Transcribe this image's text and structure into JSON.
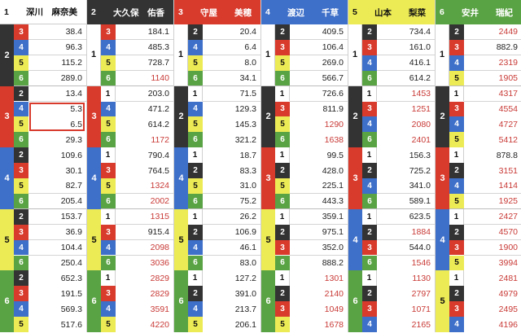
{
  "header": [
    {
      "num": "1",
      "name": "深川　麻奈美"
    },
    {
      "num": "2",
      "name": "大久保　佑香"
    },
    {
      "num": "3",
      "name": "守屋　　美穂"
    },
    {
      "num": "4",
      "name": "渡辺　　千草"
    },
    {
      "num": "5",
      "name": "山本　　梨菜"
    },
    {
      "num": "6",
      "name": "安井　　瑞紀"
    }
  ],
  "colors": {
    "1": {
      "bg": "#ffffff",
      "fg": "#111111"
    },
    "2": {
      "bg": "#333333",
      "fg": "#ffffff"
    },
    "3": {
      "bg": "#d83a2c",
      "fg": "#ffffff"
    },
    "4": {
      "bg": "#3e6fc9",
      "fg": "#ffffff"
    },
    "5": {
      "bg": "#ecea55",
      "fg": "#111111"
    },
    "6": {
      "bg": "#5aa344",
      "fg": "#ffffff"
    },
    "odds_normal": "#222222",
    "odds_high": "#c83a36",
    "highlight_border": "#d83a2c"
  },
  "columns": [
    {
      "first": "1",
      "groups": [
        {
          "second": "2",
          "rows": [
            {
              "third": "3",
              "odds": "38.4"
            },
            {
              "third": "4",
              "odds": "96.3"
            },
            {
              "third": "5",
              "odds": "115.2"
            },
            {
              "third": "6",
              "odds": "289.0"
            }
          ]
        },
        {
          "second": "3",
          "rows": [
            {
              "third": "2",
              "odds": "13.4"
            },
            {
              "third": "4",
              "odds": "5.3"
            },
            {
              "third": "5",
              "odds": "6.5"
            },
            {
              "third": "6",
              "odds": "29.3"
            }
          ]
        },
        {
          "second": "4",
          "rows": [
            {
              "third": "2",
              "odds": "109.6"
            },
            {
              "third": "3",
              "odds": "30.1"
            },
            {
              "third": "5",
              "odds": "82.7"
            },
            {
              "third": "6",
              "odds": "205.4"
            }
          ]
        },
        {
          "second": "5",
          "rows": [
            {
              "third": "2",
              "odds": "153.7"
            },
            {
              "third": "3",
              "odds": "36.9"
            },
            {
              "third": "4",
              "odds": "104.4"
            },
            {
              "third": "6",
              "odds": "250.4"
            }
          ]
        },
        {
          "second": "6",
          "rows": [
            {
              "third": "2",
              "odds": "652.3"
            },
            {
              "third": "3",
              "odds": "191.5"
            },
            {
              "third": "4",
              "odds": "569.3"
            },
            {
              "third": "5",
              "odds": "517.6"
            }
          ]
        }
      ]
    },
    {
      "first": "2",
      "groups": [
        {
          "second": "1",
          "rows": [
            {
              "third": "3",
              "odds": "184.1"
            },
            {
              "third": "4",
              "odds": "485.3"
            },
            {
              "third": "5",
              "odds": "728.7"
            },
            {
              "third": "6",
              "odds": "1140"
            }
          ]
        },
        {
          "second": "3",
          "rows": [
            {
              "third": "1",
              "odds": "203.0"
            },
            {
              "third": "4",
              "odds": "471.2"
            },
            {
              "third": "5",
              "odds": "614.2"
            },
            {
              "third": "6",
              "odds": "1172"
            }
          ]
        },
        {
          "second": "4",
          "rows": [
            {
              "third": "1",
              "odds": "790.4"
            },
            {
              "third": "3",
              "odds": "764.5"
            },
            {
              "third": "5",
              "odds": "1324"
            },
            {
              "third": "6",
              "odds": "2002"
            }
          ]
        },
        {
          "second": "5",
          "rows": [
            {
              "third": "1",
              "odds": "1315"
            },
            {
              "third": "3",
              "odds": "915.4"
            },
            {
              "third": "4",
              "odds": "2098"
            },
            {
              "third": "6",
              "odds": "3036"
            }
          ]
        },
        {
          "second": "6",
          "rows": [
            {
              "third": "1",
              "odds": "2829"
            },
            {
              "third": "3",
              "odds": "2829"
            },
            {
              "third": "4",
              "odds": "3591"
            },
            {
              "third": "5",
              "odds": "4220"
            }
          ]
        }
      ]
    },
    {
      "first": "3",
      "groups": [
        {
          "second": "1",
          "rows": [
            {
              "third": "2",
              "odds": "20.4"
            },
            {
              "third": "4",
              "odds": "6.4"
            },
            {
              "third": "5",
              "odds": "8.0"
            },
            {
              "third": "6",
              "odds": "34.1"
            }
          ]
        },
        {
          "second": "2",
          "rows": [
            {
              "third": "1",
              "odds": "71.5"
            },
            {
              "third": "4",
              "odds": "129.3"
            },
            {
              "third": "5",
              "odds": "145.3"
            },
            {
              "third": "6",
              "odds": "321.2"
            }
          ]
        },
        {
          "second": "4",
          "rows": [
            {
              "third": "1",
              "odds": "18.7"
            },
            {
              "third": "2",
              "odds": "83.3"
            },
            {
              "third": "5",
              "odds": "31.0"
            },
            {
              "third": "6",
              "odds": "75.2"
            }
          ]
        },
        {
          "second": "5",
          "rows": [
            {
              "third": "1",
              "odds": "26.2"
            },
            {
              "third": "2",
              "odds": "106.9"
            },
            {
              "third": "4",
              "odds": "46.1"
            },
            {
              "third": "6",
              "odds": "83.0"
            }
          ]
        },
        {
          "second": "6",
          "rows": [
            {
              "third": "1",
              "odds": "127.2"
            },
            {
              "third": "2",
              "odds": "391.0"
            },
            {
              "third": "4",
              "odds": "213.7"
            },
            {
              "third": "5",
              "odds": "206.1"
            }
          ]
        }
      ]
    },
    {
      "first": "4",
      "groups": [
        {
          "second": "1",
          "rows": [
            {
              "third": "2",
              "odds": "409.5"
            },
            {
              "third": "3",
              "odds": "106.4"
            },
            {
              "third": "5",
              "odds": "269.0"
            },
            {
              "third": "6",
              "odds": "566.7"
            }
          ]
        },
        {
          "second": "2",
          "rows": [
            {
              "third": "1",
              "odds": "726.6"
            },
            {
              "third": "3",
              "odds": "811.9"
            },
            {
              "third": "5",
              "odds": "1290"
            },
            {
              "third": "6",
              "odds": "1638"
            }
          ]
        },
        {
          "second": "3",
          "rows": [
            {
              "third": "1",
              "odds": "99.5"
            },
            {
              "third": "2",
              "odds": "428.0"
            },
            {
              "third": "5",
              "odds": "225.1"
            },
            {
              "third": "6",
              "odds": "443.3"
            }
          ]
        },
        {
          "second": "5",
          "rows": [
            {
              "third": "1",
              "odds": "359.1"
            },
            {
              "third": "2",
              "odds": "975.1"
            },
            {
              "third": "3",
              "odds": "352.0"
            },
            {
              "third": "6",
              "odds": "888.2"
            }
          ]
        },
        {
          "second": "6",
          "rows": [
            {
              "third": "1",
              "odds": "1301"
            },
            {
              "third": "2",
              "odds": "2140"
            },
            {
              "third": "3",
              "odds": "1049"
            },
            {
              "third": "5",
              "odds": "1678"
            }
          ]
        }
      ]
    },
    {
      "first": "5",
      "groups": [
        {
          "second": "1",
          "rows": [
            {
              "third": "2",
              "odds": "734.4"
            },
            {
              "third": "3",
              "odds": "161.0"
            },
            {
              "third": "4",
              "odds": "416.1"
            },
            {
              "third": "6",
              "odds": "614.2"
            }
          ]
        },
        {
          "second": "2",
          "rows": [
            {
              "third": "1",
              "odds": "1453"
            },
            {
              "third": "3",
              "odds": "1251"
            },
            {
              "third": "4",
              "odds": "2080"
            },
            {
              "third": "6",
              "odds": "2401"
            }
          ]
        },
        {
          "second": "3",
          "rows": [
            {
              "third": "1",
              "odds": "156.3"
            },
            {
              "third": "2",
              "odds": "725.2"
            },
            {
              "third": "4",
              "odds": "341.0"
            },
            {
              "third": "6",
              "odds": "589.1"
            }
          ]
        },
        {
          "second": "4",
          "rows": [
            {
              "third": "1",
              "odds": "623.5"
            },
            {
              "third": "2",
              "odds": "1884"
            },
            {
              "third": "3",
              "odds": "544.0"
            },
            {
              "third": "6",
              "odds": "1546"
            }
          ]
        },
        {
          "second": "6",
          "rows": [
            {
              "third": "1",
              "odds": "1130"
            },
            {
              "third": "2",
              "odds": "2797"
            },
            {
              "third": "3",
              "odds": "1071"
            },
            {
              "third": "4",
              "odds": "2165"
            }
          ]
        }
      ]
    },
    {
      "first": "6",
      "groups": [
        {
          "second": "1",
          "rows": [
            {
              "third": "2",
              "odds": "2449"
            },
            {
              "third": "3",
              "odds": "882.9"
            },
            {
              "third": "4",
              "odds": "2319"
            },
            {
              "third": "5",
              "odds": "1905"
            }
          ]
        },
        {
          "second": "2",
          "rows": [
            {
              "third": "1",
              "odds": "4317"
            },
            {
              "third": "3",
              "odds": "4554"
            },
            {
              "third": "4",
              "odds": "4727"
            },
            {
              "third": "5",
              "odds": "5412"
            }
          ]
        },
        {
          "second": "3",
          "rows": [
            {
              "third": "1",
              "odds": "878.8"
            },
            {
              "third": "2",
              "odds": "3151"
            },
            {
              "third": "4",
              "odds": "1414"
            },
            {
              "third": "5",
              "odds": "1925"
            }
          ]
        },
        {
          "second": "4",
          "rows": [
            {
              "third": "1",
              "odds": "2427"
            },
            {
              "third": "2",
              "odds": "4570"
            },
            {
              "third": "3",
              "odds": "1900"
            },
            {
              "third": "5",
              "odds": "3994"
            }
          ]
        },
        {
          "second": "5",
          "rows": [
            {
              "third": "1",
              "odds": "2481"
            },
            {
              "third": "2",
              "odds": "4979"
            },
            {
              "third": "3",
              "odds": "2495"
            },
            {
              "third": "4",
              "odds": "4196"
            }
          ]
        }
      ]
    }
  ]
}
